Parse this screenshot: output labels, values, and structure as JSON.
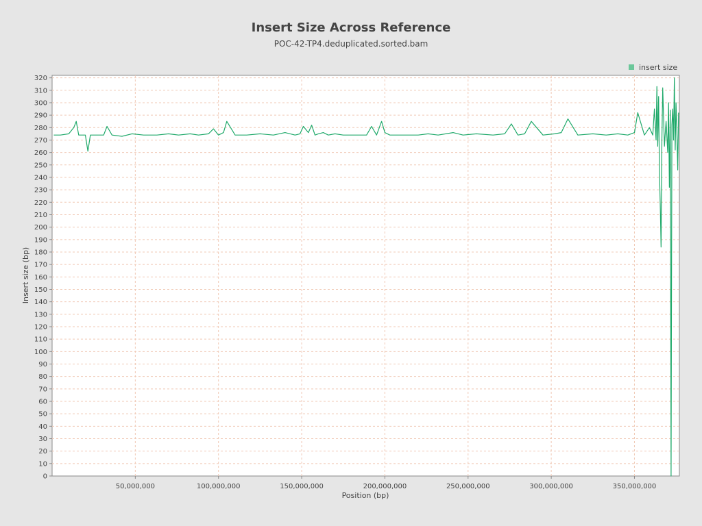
{
  "title": "Insert Size Across Reference",
  "subtitle": "POC-42-TP4.deduplicated.sorted.bam",
  "colors": {
    "background": "#e6e6e6",
    "plot_background": "#ffffff",
    "grid": "#f0c8b4",
    "series": "#1fa96a",
    "legend_swatch": "#6cc79a",
    "text": "#444444"
  },
  "chart_data": {
    "type": "line",
    "title": "Insert Size Across Reference",
    "subtitle": "POC-42-TP4.deduplicated.sorted.bam",
    "xlabel": "Position (bp)",
    "ylabel": "Insert size (bp)",
    "xlim": [
      0,
      377000000
    ],
    "ylim": [
      0,
      322
    ],
    "x_ticks": [
      50000000,
      100000000,
      150000000,
      200000000,
      250000000,
      300000000,
      350000000
    ],
    "x_tick_labels": [
      "50,000,000",
      "100,000,000",
      "150,000,000",
      "200,000,000",
      "250,000,000",
      "300,000,000",
      "350,000,000"
    ],
    "y_ticks": [
      0,
      10,
      20,
      30,
      40,
      50,
      60,
      70,
      80,
      90,
      100,
      110,
      120,
      130,
      140,
      150,
      160,
      170,
      180,
      190,
      200,
      210,
      220,
      230,
      240,
      250,
      260,
      270,
      280,
      290,
      300,
      310,
      320
    ],
    "grid": true,
    "legend_position": "top-right",
    "series": [
      {
        "name": "insert size",
        "x": [
          1000000,
          5000000,
          10000000,
          13000000,
          14500000,
          16000000,
          20000000,
          21500000,
          23000000,
          27000000,
          31000000,
          33000000,
          36000000,
          42000000,
          48000000,
          55000000,
          63000000,
          70000000,
          76000000,
          83000000,
          88000000,
          94000000,
          97000000,
          100000000,
          103000000,
          105000000,
          110000000,
          117000000,
          125000000,
          133000000,
          140000000,
          146000000,
          149000000,
          151000000,
          154000000,
          156000000,
          158000000,
          160000000,
          163000000,
          166000000,
          170000000,
          175000000,
          182000000,
          189000000,
          192000000,
          195000000,
          198000000,
          200000000,
          203000000,
          210000000,
          220000000,
          226000000,
          232000000,
          241000000,
          247000000,
          255000000,
          265000000,
          272000000,
          276000000,
          280000000,
          284000000,
          288000000,
          295000000,
          302000000,
          306000000,
          310000000,
          316000000,
          325000000,
          333000000,
          340000000,
          346000000,
          350000000,
          352000000,
          356000000,
          359000000,
          361000000,
          362000000,
          363000000,
          363500000,
          364000000,
          364500000,
          365000000,
          365500000,
          366000000,
          366500000,
          367000000,
          368000000,
          369000000,
          370000000,
          370500000,
          371000000,
          371500000,
          372000000,
          372500000,
          373000000,
          373500000,
          374000000,
          374500000,
          375000000,
          375500000,
          376000000,
          376500000
        ],
        "values": [
          274,
          274,
          275,
          280,
          285,
          274,
          274,
          261,
          274,
          274,
          274,
          281,
          274,
          273,
          275,
          274,
          274,
          275,
          274,
          275,
          274,
          275,
          279,
          274,
          276,
          285,
          274,
          274,
          275,
          274,
          276,
          274,
          275,
          281,
          276,
          282,
          274,
          275,
          276,
          274,
          275,
          274,
          274,
          274,
          281,
          274,
          285,
          276,
          274,
          274,
          274,
          275,
          274,
          276,
          274,
          275,
          274,
          275,
          283,
          274,
          275,
          285,
          274,
          275,
          276,
          287,
          274,
          275,
          274,
          275,
          274,
          276,
          292,
          274,
          280,
          274,
          295,
          270,
          313,
          265,
          305,
          246,
          218,
          184,
          270,
          312,
          265,
          285,
          260,
          300,
          232,
          294,
          0,
          282,
          295,
          270,
          320,
          262,
          300,
          275,
          246,
          292
        ]
      }
    ]
  },
  "legend": {
    "entries": [
      "insert size"
    ]
  }
}
